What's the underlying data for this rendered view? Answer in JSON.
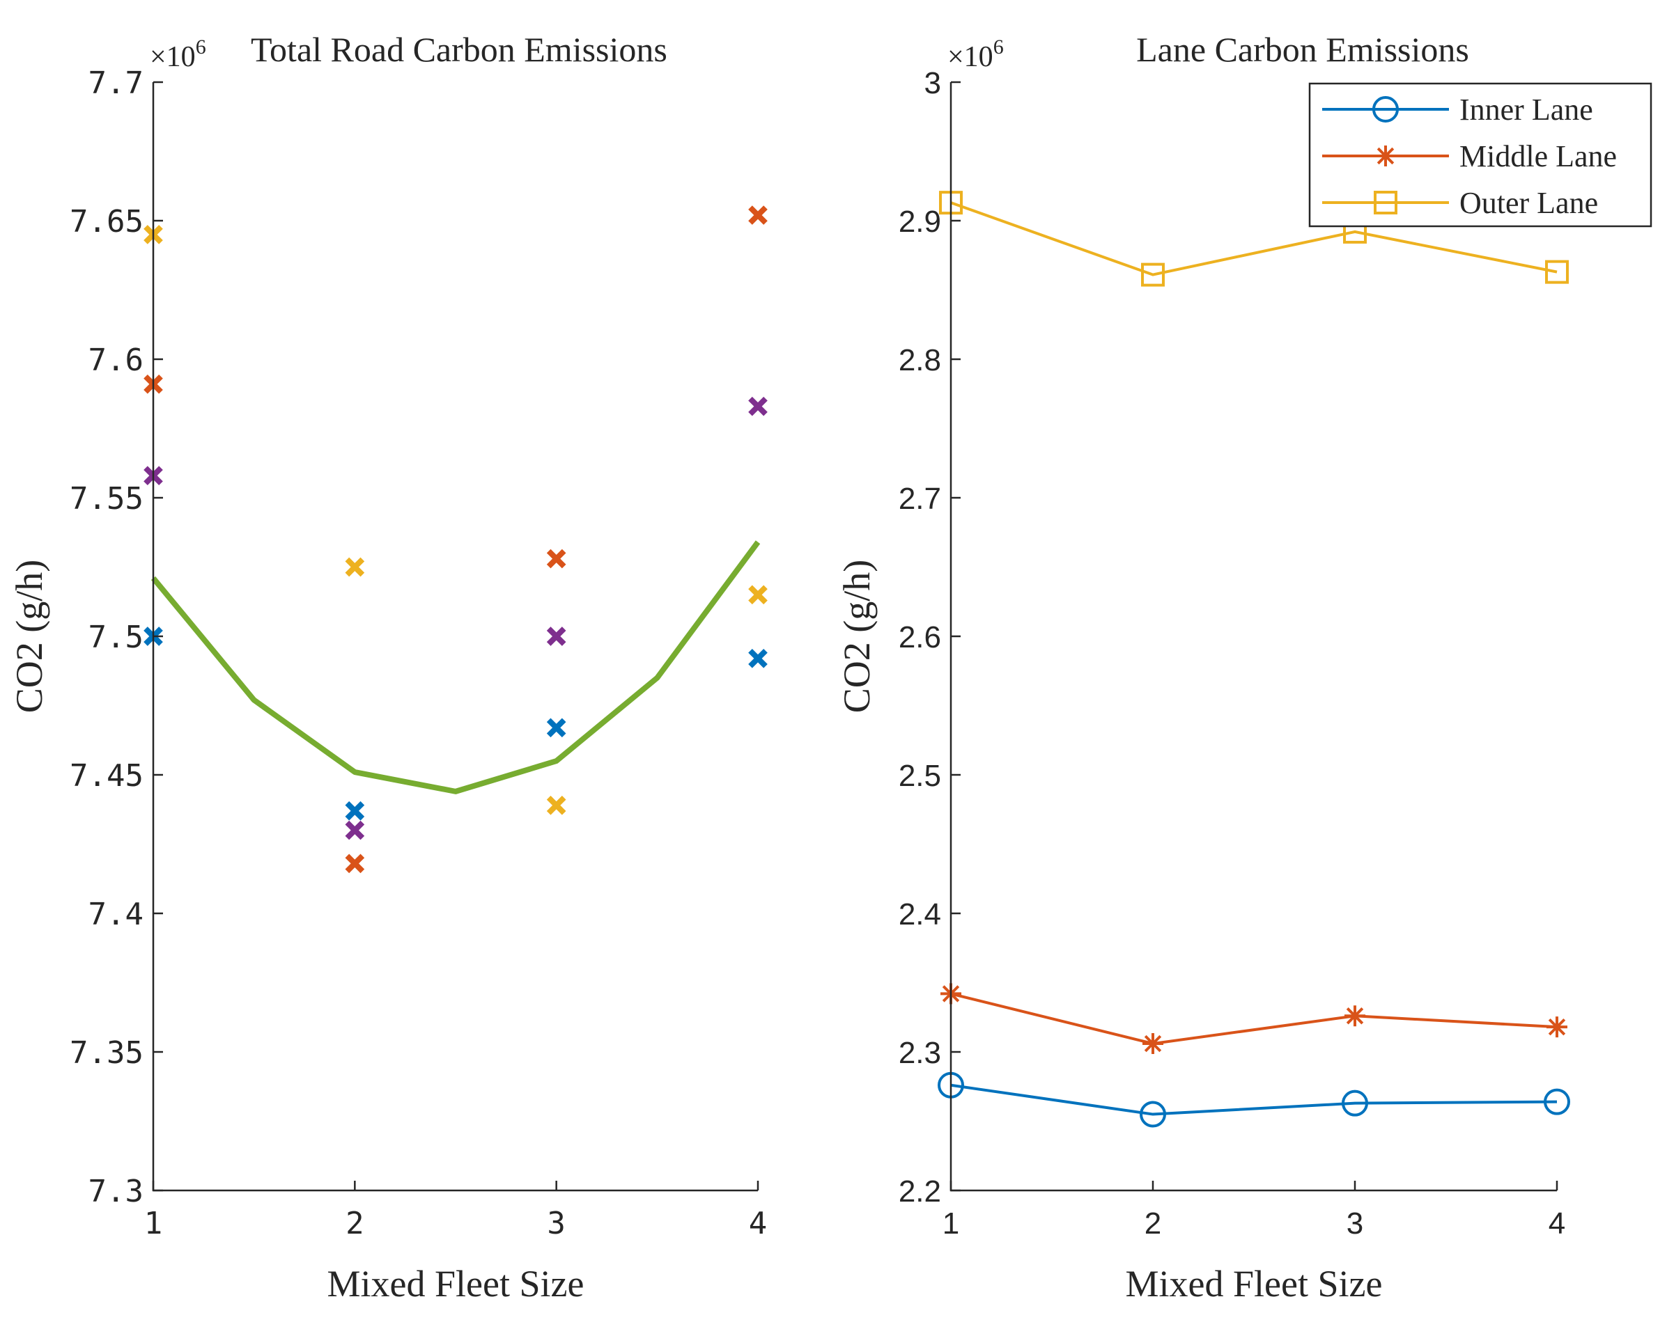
{
  "chart_data": [
    {
      "type": "scatter",
      "title": "Total Road Carbon Emissions",
      "xlabel": "Mixed Fleet Size",
      "ylabel": "CO2 (g/h)",
      "exponent_label": "×10",
      "exponent_power": "6",
      "xlim": [
        1,
        4
      ],
      "ylim": [
        7.3,
        7.7
      ],
      "x_ticks": [
        1,
        2,
        3,
        4
      ],
      "x_tick_labels": [
        "1",
        "2",
        "3",
        "4"
      ],
      "y_ticks": [
        7.3,
        7.35,
        7.4,
        7.45,
        7.5,
        7.55,
        7.6,
        7.65,
        7.7
      ],
      "y_tick_labels": [
        "7.3",
        "7.35",
        "7.4",
        "7.45",
        "7.5",
        "7.55",
        "7.6",
        "7.65",
        "7.7"
      ],
      "grid": false,
      "line": {
        "name": "trend",
        "color": "#77AC30",
        "x": [
          1,
          1.5,
          2,
          2.5,
          3,
          3.5,
          4
        ],
        "y": [
          7.521,
          7.477,
          7.451,
          7.444,
          7.455,
          7.485,
          7.534
        ]
      },
      "series": [
        {
          "name": "blue",
          "color": "#0072BD",
          "marker": "x",
          "x": [
            1,
            2,
            3,
            4
          ],
          "y": [
            7.5,
            7.437,
            7.467,
            7.492
          ]
        },
        {
          "name": "orange",
          "color": "#D95319",
          "marker": "x",
          "x": [
            1,
            2,
            3,
            4
          ],
          "y": [
            7.591,
            7.418,
            7.528,
            7.652
          ]
        },
        {
          "name": "yellow",
          "color": "#EDB120",
          "marker": "x",
          "x": [
            1,
            2,
            3,
            4
          ],
          "y": [
            7.645,
            7.525,
            7.439,
            7.515
          ]
        },
        {
          "name": "purple",
          "color": "#7E2F8E",
          "marker": "x",
          "x": [
            1,
            2,
            3,
            4
          ],
          "y": [
            7.558,
            7.43,
            7.5,
            7.583
          ]
        }
      ]
    },
    {
      "type": "line",
      "title": "Lane Carbon Emissions",
      "xlabel": "Mixed Fleet Size",
      "ylabel": "CO2 (g/h)",
      "exponent_label": "×10",
      "exponent_power": "6",
      "xlim": [
        1,
        4
      ],
      "ylim": [
        2.2,
        3.0
      ],
      "x_ticks": [
        1,
        2,
        3,
        4
      ],
      "x_tick_labels": [
        "1",
        "2",
        "3",
        "4"
      ],
      "y_ticks": [
        2.2,
        2.3,
        2.4,
        2.5,
        2.6,
        2.7,
        2.8,
        2.9,
        3.0
      ],
      "y_tick_labels": [
        "2.2",
        "2.3",
        "2.4",
        "2.5",
        "2.6",
        "2.7",
        "2.8",
        "2.9",
        "3"
      ],
      "grid": false,
      "legend_position": "top-right",
      "series": [
        {
          "name": "Inner Lane",
          "color": "#0072BD",
          "marker": "o",
          "x": [
            1,
            2,
            3,
            4
          ],
          "y": [
            2.276,
            2.255,
            2.263,
            2.264
          ]
        },
        {
          "name": "Middle Lane",
          "color": "#D95319",
          "marker": "*",
          "x": [
            1,
            2,
            3,
            4
          ],
          "y": [
            2.342,
            2.306,
            2.326,
            2.318
          ]
        },
        {
          "name": "Outer Lane",
          "color": "#EDB120",
          "marker": "s",
          "x": [
            1,
            2,
            3,
            4
          ],
          "y": [
            2.913,
            2.861,
            2.892,
            2.863
          ]
        }
      ]
    }
  ]
}
